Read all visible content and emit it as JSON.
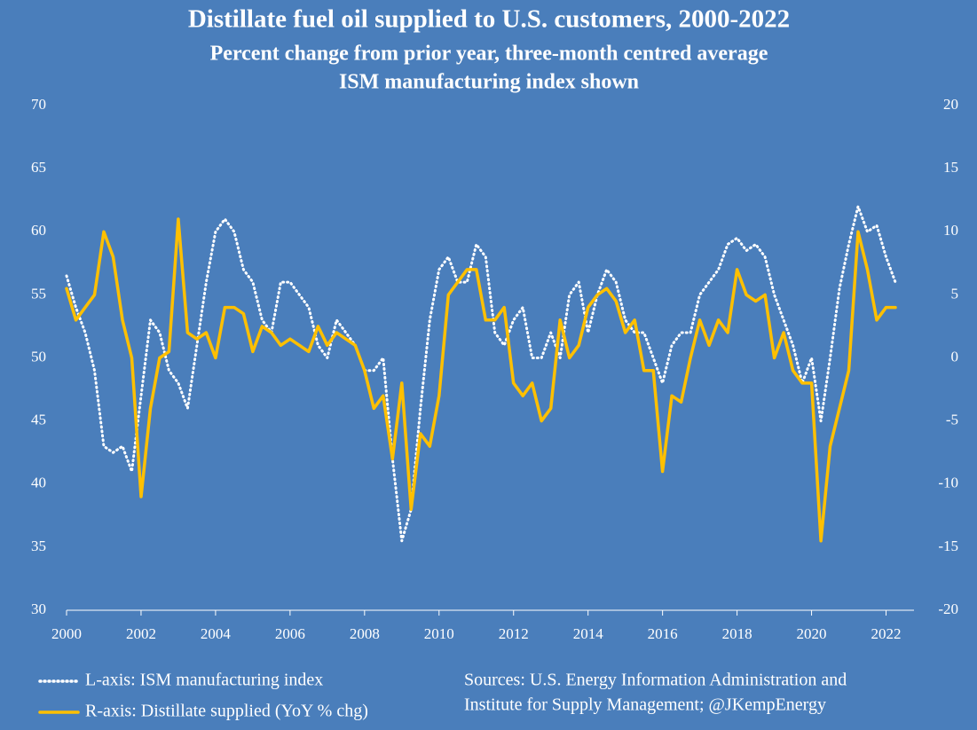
{
  "chart_data": {
    "type": "line",
    "title": "Distillate fuel oil supplied to U.S. customers, 2000-2022",
    "subtitle": "Percent change from prior year, three-month centred average",
    "subtitle2": "ISM manufacturing index shown",
    "source": "Sources: U.S. Energy Information Administration and",
    "source2": "Institute for Supply Management; @JKempEnergy",
    "x": [
      2000,
      2000.25,
      2000.5,
      2000.75,
      2001,
      2001.25,
      2001.5,
      2001.75,
      2002,
      2002.25,
      2002.5,
      2002.75,
      2003,
      2003.25,
      2003.5,
      2003.75,
      2004,
      2004.25,
      2004.5,
      2004.75,
      2005,
      2005.25,
      2005.5,
      2005.75,
      2006,
      2006.25,
      2006.5,
      2006.75,
      2007,
      2007.25,
      2007.5,
      2007.75,
      2008,
      2008.25,
      2008.5,
      2008.75,
      2009,
      2009.25,
      2009.5,
      2009.75,
      2010,
      2010.25,
      2010.5,
      2010.75,
      2011,
      2011.25,
      2011.5,
      2011.75,
      2012,
      2012.25,
      2012.5,
      2012.75,
      2013,
      2013.25,
      2013.5,
      2013.75,
      2014,
      2014.25,
      2014.5,
      2014.75,
      2015,
      2015.25,
      2015.5,
      2015.75,
      2016,
      2016.25,
      2016.5,
      2016.75,
      2017,
      2017.25,
      2017.5,
      2017.75,
      2018,
      2018.25,
      2018.5,
      2018.75,
      2019,
      2019.25,
      2019.5,
      2019.75,
      2020,
      2020.25,
      2020.5,
      2020.75,
      2021,
      2021.25,
      2021.5,
      2021.75,
      2022,
      2022.25
    ],
    "series": [
      {
        "name": "L-axis: ISM manufacturing index",
        "color": "#ffffff",
        "dash": true,
        "values": [
          56.5,
          54,
          52,
          49,
          43,
          42.5,
          43,
          41,
          47,
          53,
          52,
          49,
          48,
          46,
          51,
          56,
          60,
          61,
          60,
          57,
          56,
          53,
          52,
          56,
          56,
          55,
          54,
          51,
          50,
          53,
          52,
          51,
          49,
          49,
          50,
          42,
          35.5,
          38,
          46,
          53,
          57,
          58,
          56,
          56,
          59,
          58,
          52,
          51,
          53,
          54,
          50,
          50,
          52,
          50,
          55,
          56,
          52,
          55,
          57,
          56,
          53,
          52,
          52,
          50,
          48,
          51,
          52,
          52,
          55,
          56,
          57,
          59,
          59.5,
          58.5,
          59,
          58,
          55,
          53,
          51,
          48,
          50,
          45,
          50,
          55.5,
          59,
          62,
          60,
          60.5,
          58,
          56
        ]
      },
      {
        "name": "R-axis: Distillate supplied (YoY % chg)",
        "color": "#ffc000",
        "axis": "y2",
        "values": [
          5.5,
          3,
          4,
          5,
          10,
          8,
          3,
          0,
          -11,
          -4,
          0,
          0.5,
          11,
          2,
          1.5,
          2,
          0,
          4,
          4,
          3.5,
          0.5,
          2.5,
          2,
          1,
          1.5,
          1,
          0.5,
          2.5,
          1,
          2,
          1.5,
          1,
          -1,
          -4,
          -3,
          -8,
          -2,
          -12,
          -6,
          -7,
          -3,
          5,
          6,
          7,
          7,
          3,
          3,
          4,
          -2,
          -3,
          -2,
          -5,
          -4,
          3,
          0,
          1,
          4,
          5,
          5.5,
          4.5,
          2,
          3,
          -1,
          -1,
          -9,
          -3,
          -3.5,
          0,
          3,
          1,
          3,
          2,
          7,
          5,
          4.5,
          5,
          0,
          2,
          -1,
          -2,
          -2,
          -14.5,
          -7,
          -4,
          -1,
          10,
          7,
          3,
          4,
          4
        ]
      }
    ],
    "xlim": [
      2000,
      2022.75
    ],
    "xticks": [
      2000,
      2002,
      2004,
      2006,
      2008,
      2010,
      2012,
      2014,
      2016,
      2018,
      2020,
      2022
    ],
    "ylim": [
      30,
      70
    ],
    "yticks": [
      30,
      35,
      40,
      45,
      50,
      55,
      60,
      65,
      70
    ],
    "y2lim": [
      -20,
      20
    ],
    "y2ticks": [
      -20,
      -15,
      -10,
      -5,
      0,
      5,
      10,
      15,
      20
    ]
  }
}
